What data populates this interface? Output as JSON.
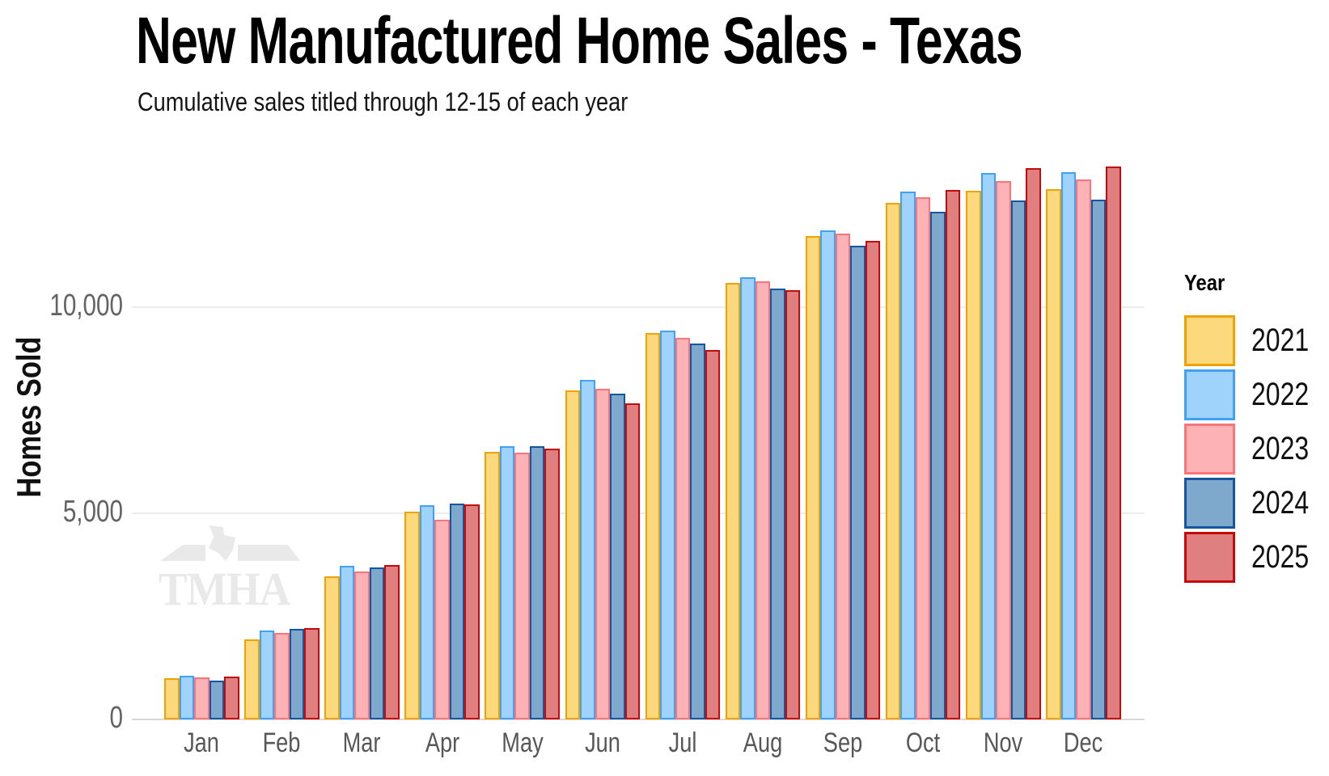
{
  "watermark": {
    "text": "TMHA"
  },
  "chart_data": {
    "type": "bar",
    "title": "New Manufactured Home Sales - Texas",
    "subtitle": "Cumulative sales titled through 12-15 of each year",
    "xlabel": "",
    "ylabel": "Homes Sold",
    "legend_title": "Year",
    "legend_position": "right",
    "grid": "horizontal-major",
    "ylim": [
      0,
      14000
    ],
    "yticks": [
      0,
      5000,
      10000
    ],
    "ytick_labels": [
      "0",
      "5,000",
      "10,000"
    ],
    "categories": [
      "Jan",
      "Feb",
      "Mar",
      "Apr",
      "May",
      "Jun",
      "Jul",
      "Aug",
      "Sep",
      "Oct",
      "Nov",
      "Dec"
    ],
    "series": [
      {
        "name": "2021",
        "fill": "#FCD97C",
        "stroke": "#F0A202",
        "values": [
          1010,
          1950,
          3475,
          5030,
          6495,
          7975,
          9380,
          10590,
          11730,
          12530,
          12830,
          12855
        ]
      },
      {
        "name": "2022",
        "fill": "#A0D3FC",
        "stroke": "#40A1F5",
        "values": [
          1060,
          2150,
          3725,
          5200,
          6635,
          8230,
          9430,
          10720,
          11865,
          12800,
          13250,
          13270
        ]
      },
      {
        "name": "2023",
        "fill": "#FDB3B6",
        "stroke": "#FA7579",
        "values": [
          1025,
          2105,
          3595,
          4850,
          6480,
          8020,
          9250,
          10635,
          11790,
          12675,
          13055,
          13090
        ]
      },
      {
        "name": "2024",
        "fill": "#7FA9CC",
        "stroke": "#15569E",
        "values": [
          945,
          2195,
          3685,
          5230,
          6625,
          7910,
          9110,
          10450,
          11485,
          12320,
          12595,
          12610
        ]
      },
      {
        "name": "2025",
        "fill": "#DF7F80",
        "stroke": "#C40A0A",
        "values": [
          1040,
          2215,
          3750,
          5215,
          6570,
          7670,
          8965,
          10405,
          11615,
          12850,
          13365,
          13410
        ]
      }
    ],
    "colors": {
      "background": "#ffffff",
      "grid": "#ececec",
      "axis_line": "#d9d9d9",
      "axis_text": "#636363",
      "title_text": "#000000",
      "watermark": "#e9e9e9"
    }
  }
}
